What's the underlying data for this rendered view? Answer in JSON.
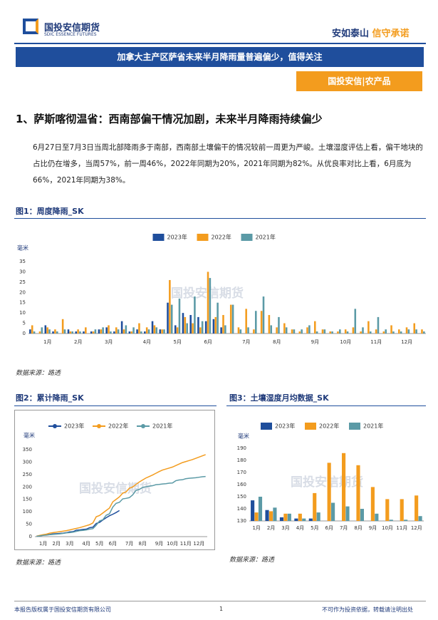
{
  "header": {
    "logo": "国投安信期货",
    "logo_en": "SDIC ESSENCE FUTURES",
    "slogan_a": "安如泰山",
    "slogan_b": "信守承诺"
  },
  "banner": "加拿大主产区萨省未来半月降雨量普遍偏少，值得关注",
  "tag": "国投安信|农产品",
  "section_title": "1、萨斯喀彻温省：西南部偏干情况加剧，未来半月降雨持续偏少",
  "paragraph": "6月27日至7月3日当周北部降雨多于南部，西南部土壤偏干的情况较前一周更为严峻。土壤湿度评估上看，偏干地块的占比仍在增多，当周57%，前一周46%，2022年同期为20%，2021年同期为82%。从优良率对比上看，6月底为66%，2021年同期为38%。",
  "watermark": "国投安信期货",
  "source": "数据来源：路透",
  "footer": {
    "left": "本报告版权属于国投安信期货有限公司",
    "page": "1",
    "right": "不可作为投资依据，转载请注明出处"
  },
  "chart_data": [
    {
      "type": "bar",
      "title": "图1：周度降雨_SK",
      "unit": "毫米",
      "ylim": [
        0,
        35
      ],
      "yticks": [
        0,
        5,
        10,
        15,
        20,
        25,
        30,
        35
      ],
      "grid": false,
      "categories": [
        null,
        null,
        "1月",
        null,
        null,
        null,
        "2月",
        null,
        null,
        null,
        "3月",
        null,
        null,
        null,
        null,
        "4月",
        null,
        null,
        null,
        "5月",
        null,
        null,
        null,
        "6月",
        null,
        null,
        null,
        null,
        "7月",
        null,
        null,
        null,
        "8月",
        null,
        null,
        null,
        null,
        "9月",
        null,
        null,
        null,
        "10月",
        null,
        null,
        null,
        "11月",
        null,
        null,
        null,
        "12月",
        null,
        null
      ],
      "series": [
        {
          "name": "2023年",
          "color": "#1f4e9c",
          "values": [
            2,
            0,
            4,
            1,
            0,
            2,
            1,
            1,
            1,
            2,
            3,
            1,
            6,
            1,
            2,
            1,
            6,
            2,
            15,
            4,
            10,
            9,
            8,
            6,
            7,
            3,
            null,
            null,
            null,
            null,
            null,
            null,
            null,
            null,
            null,
            null,
            null,
            null,
            null,
            null,
            null,
            null,
            null,
            null,
            null,
            null,
            null,
            null,
            null,
            null,
            null,
            null
          ]
        },
        {
          "name": "2022年",
          "color": "#f39c1e",
          "values": [
            4,
            1,
            3,
            2,
            7,
            1,
            2,
            3,
            1,
            2,
            4,
            3,
            2,
            1,
            5,
            3,
            4,
            2,
            26,
            3,
            8,
            5,
            3,
            30,
            8,
            9,
            14,
            3,
            12,
            2,
            11,
            9,
            3,
            5,
            2,
            1,
            3,
            6,
            2,
            1,
            1,
            2,
            3,
            1,
            6,
            2,
            1,
            4,
            2,
            3,
            5,
            2
          ]
        },
        {
          "name": "2021年",
          "color": "#5b9aa6",
          "values": [
            1,
            3,
            2,
            1,
            2,
            1,
            1,
            0,
            2,
            3,
            1,
            2,
            4,
            3,
            1,
            2,
            3,
            2,
            14,
            17,
            5,
            18,
            6,
            27,
            15,
            4,
            14,
            2,
            3,
            11,
            18,
            4,
            8,
            3,
            2,
            2,
            4,
            1,
            2,
            1,
            2,
            1,
            12,
            3,
            1,
            8,
            2,
            1,
            1,
            2,
            2,
            1
          ]
        }
      ]
    },
    {
      "type": "line",
      "title": "图2：累计降雨_SK",
      "unit": "毫米",
      "ylim": [
        0,
        350
      ],
      "yticks": [
        0,
        50,
        100,
        150,
        200,
        250,
        300,
        350
      ],
      "grid": false,
      "categories": [
        null,
        null,
        "1月",
        null,
        null,
        null,
        "2月",
        null,
        null,
        null,
        "3月",
        null,
        null,
        null,
        null,
        "4月",
        null,
        null,
        null,
        "5月",
        null,
        null,
        null,
        "6月",
        null,
        null,
        null,
        null,
        "7月",
        null,
        null,
        null,
        "8月",
        null,
        null,
        null,
        null,
        "9月",
        null,
        null,
        null,
        "10月",
        null,
        null,
        null,
        "11月",
        null,
        null,
        null,
        "12月",
        null,
        null
      ],
      "series": [
        {
          "name": "2023年",
          "color": "#1f4e9c",
          "values": [
            2,
            3,
            6,
            8,
            9,
            11,
            12,
            13,
            14,
            16,
            19,
            20,
            26,
            27,
            29,
            30,
            36,
            38,
            53,
            57,
            67,
            76,
            84,
            90,
            97,
            105,
            null,
            null,
            null,
            null,
            null,
            null,
            null,
            null,
            null,
            null,
            null,
            null,
            null,
            null,
            null,
            null,
            null,
            null,
            null,
            null,
            null,
            null,
            null,
            null,
            null,
            null
          ]
        },
        {
          "name": "2022年",
          "color": "#f39c1e",
          "values": [
            2,
            5,
            8,
            10,
            14,
            16,
            18,
            20,
            22,
            24,
            27,
            30,
            33,
            36,
            40,
            44,
            48,
            55,
            80,
            85,
            95,
            105,
            115,
            140,
            150,
            160,
            175,
            180,
            195,
            200,
            210,
            220,
            228,
            236,
            242,
            248,
            255,
            262,
            268,
            272,
            276,
            280,
            286,
            292,
            298,
            302,
            306,
            310,
            315,
            320,
            325,
            330
          ]
        },
        {
          "name": "2021年",
          "color": "#5b9aa6",
          "values": [
            1,
            3,
            5,
            6,
            8,
            9,
            10,
            11,
            13,
            15,
            16,
            18,
            21,
            24,
            25,
            27,
            30,
            32,
            46,
            63,
            68,
            86,
            92,
            119,
            134,
            138,
            152,
            154,
            157,
            168,
            186,
            190,
            198,
            201,
            203,
            205,
            209,
            210,
            212,
            213,
            215,
            216,
            225,
            228,
            229,
            233,
            235,
            236,
            237,
            239,
            241,
            242
          ]
        }
      ]
    },
    {
      "type": "bar",
      "title": "图3：土壤湿度月均数据_SK",
      "unit": "毫米",
      "ylim": [
        130,
        190
      ],
      "yticks": [
        130,
        140,
        150,
        160,
        170,
        180,
        190
      ],
      "grid": false,
      "categories": [
        "1月",
        "2月",
        "3月",
        "4月",
        "5月",
        "6月",
        "7月",
        "8月",
        "9月",
        "10月",
        "11月",
        "12月"
      ],
      "series": [
        {
          "name": "2023年",
          "color": "#1f4e9c",
          "values": [
            147,
            139,
            133,
            132,
            132,
            null,
            null,
            null,
            null,
            null,
            null,
            null
          ]
        },
        {
          "name": "2022年",
          "color": "#f39c1e",
          "values": [
            137,
            138,
            136,
            136,
            153,
            178,
            186,
            176,
            158,
            148,
            148,
            151
          ]
        },
        {
          "name": "2021年",
          "color": "#5b9aa6",
          "values": [
            150,
            141,
            136,
            132,
            137,
            145,
            142,
            140,
            136,
            131,
            131,
            134
          ]
        }
      ]
    }
  ]
}
